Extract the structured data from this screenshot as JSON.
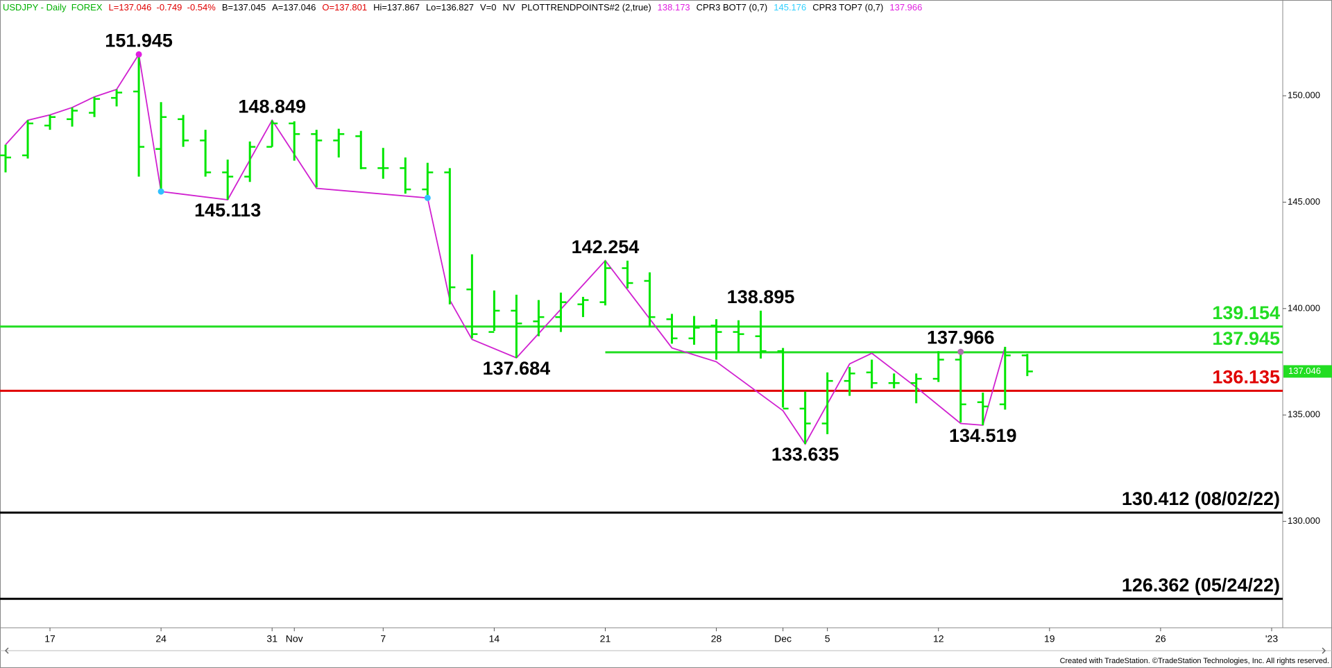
{
  "header": [
    {
      "text": "USDJPY - Daily  FOREX",
      "color": "#00b000"
    },
    {
      "text": "L=137.046  -0.749  -0.54%",
      "color": "#e00000"
    },
    {
      "text": "B=137.045",
      "color": "#000000"
    },
    {
      "text": "A=137.046",
      "color": "#000000"
    },
    {
      "text": "O=137.801",
      "color": "#e00000"
    },
    {
      "text": "Hi=137.867",
      "color": "#000000"
    },
    {
      "text": "Lo=136.827",
      "color": "#000000"
    },
    {
      "text": "V=0",
      "color": "#000000"
    },
    {
      "text": "NV",
      "color": "#000000"
    },
    {
      "text": "PLOTTRENDPOINTS#2 (2,true)",
      "color": "#000000"
    },
    {
      "text": "138.173",
      "color": "#e020e0"
    },
    {
      "text": "CPR3 BOT7 (0,7)",
      "color": "#000000"
    },
    {
      "text": "145.176",
      "color": "#30d0ff"
    },
    {
      "text": "CPR3 TOP7 (0,7)",
      "color": "#000000"
    },
    {
      "text": "137.966",
      "color": "#e020e0"
    }
  ],
  "footer": "Created with TradeStation. ©TradeStation Technologies, Inc. All rights reserved.",
  "chart_data": {
    "type": "ohlc",
    "color": "#00e600",
    "x": [
      0,
      1,
      2,
      3,
      4,
      5,
      6,
      7,
      8,
      9,
      10,
      11,
      12,
      13,
      14,
      15,
      16,
      17,
      18,
      19,
      20,
      21,
      22,
      23,
      24,
      25,
      26,
      27,
      28,
      29,
      30,
      31,
      32,
      33,
      34,
      35,
      36,
      37,
      38,
      39,
      40,
      41,
      42,
      43,
      44,
      45,
      46
    ],
    "open": [
      147.2,
      147.2,
      148.6,
      148.9,
      149.2,
      149.9,
      150.2,
      147.5,
      148.9,
      147.9,
      146.4,
      146.2,
      147.6,
      148.7,
      148.2,
      147.9,
      148.1,
      146.6,
      146.6,
      145.6,
      146.4,
      140.9,
      138.9,
      139.9,
      139.4,
      139.6,
      140.2,
      140.3,
      141.9,
      141.3,
      139.5,
      138.6,
      139.2,
      138.9,
      138.7,
      138.0,
      135.3,
      134.6,
      136.6,
      137.0,
      136.5,
      136.5,
      136.7,
      137.6,
      135.6,
      135.5,
      137.801
    ],
    "high": [
      147.7,
      148.85,
      149.1,
      149.45,
      149.95,
      150.3,
      151.945,
      149.7,
      149.1,
      148.4,
      147.0,
      147.85,
      148.849,
      148.8,
      148.4,
      148.45,
      148.35,
      147.55,
      147.1,
      146.85,
      146.6,
      142.55,
      140.85,
      140.65,
      140.4,
      140.75,
      140.55,
      142.254,
      142.25,
      141.7,
      139.75,
      139.65,
      139.5,
      139.45,
      139.9,
      138.15,
      136.1,
      137.0,
      137.25,
      137.6,
      136.95,
      136.95,
      138.0,
      138.0,
      136.05,
      138.2,
      137.867
    ],
    "low": [
      146.4,
      147.05,
      148.4,
      148.55,
      149.0,
      149.5,
      146.2,
      145.5,
      147.6,
      146.2,
      145.113,
      145.95,
      147.6,
      146.95,
      145.7,
      147.1,
      146.55,
      146.1,
      145.4,
      145.2,
      140.2,
      138.6,
      138.95,
      137.684,
      138.7,
      138.9,
      139.6,
      140.15,
      140.95,
      139.15,
      138.35,
      138.3,
      137.6,
      137.95,
      137.65,
      135.35,
      133.635,
      134.1,
      135.9,
      136.25,
      136.25,
      135.55,
      136.55,
      134.65,
      134.519,
      135.25,
      136.827
    ],
    "close": [
      147.1,
      148.7,
      149.0,
      149.3,
      149.85,
      150.15,
      147.6,
      149.0,
      147.9,
      146.4,
      146.2,
      147.6,
      148.7,
      148.2,
      147.9,
      148.2,
      146.6,
      146.6,
      145.6,
      146.4,
      141.0,
      138.8,
      139.9,
      139.3,
      139.6,
      140.3,
      140.4,
      141.9,
      141.2,
      139.6,
      138.6,
      139.1,
      138.9,
      138.8,
      138.0,
      135.3,
      134.6,
      136.6,
      136.95,
      136.5,
      136.5,
      136.7,
      137.6,
      135.5,
      135.4,
      137.8,
      137.046
    ],
    "trend": {
      "color": "#d020d0",
      "x": [
        0,
        1,
        2,
        3,
        4,
        5,
        6,
        7,
        10,
        12,
        14,
        19,
        20,
        21,
        23,
        27,
        30,
        32,
        35,
        36,
        38,
        39,
        41,
        43,
        44,
        45
      ],
      "values": [
        147.7,
        148.85,
        149.1,
        149.45,
        149.95,
        150.3,
        151.945,
        145.5,
        145.113,
        148.849,
        145.65,
        145.2,
        140.4,
        138.55,
        137.684,
        142.254,
        138.15,
        137.5,
        135.2,
        133.635,
        137.4,
        137.9,
        136.3,
        134.6,
        134.519,
        138.2
      ]
    },
    "pivot_markers": [
      {
        "x": 6,
        "value": 151.945,
        "color": "#e020e0"
      },
      {
        "x": 7,
        "value": 145.5,
        "color": "#30c0ff"
      },
      {
        "x": 19,
        "value": 145.2,
        "color": "#30c0ff"
      },
      {
        "x": 43,
        "value": 137.966,
        "color": "#b070b0"
      }
    ],
    "pivot_labels": [
      {
        "x": 6,
        "value": 151.945
      },
      {
        "x": 10,
        "value": 145.113
      },
      {
        "x": 12,
        "value": 148.849
      },
      {
        "x": 23,
        "value": 137.684
      },
      {
        "x": 27,
        "value": 142.254
      },
      {
        "x": 34,
        "value": 138.895
      },
      {
        "x": 36,
        "value": 133.635
      },
      {
        "x": 43,
        "value": 137.966
      },
      {
        "x": 44,
        "value": 134.519
      }
    ],
    "levels": [
      {
        "value": 139.154,
        "color": "#22dd22"
      },
      {
        "value": 137.945,
        "color": "#22dd22",
        "from": 27
      },
      {
        "value": 136.135,
        "color": "#e00000"
      },
      {
        "value": 130.412,
        "color": "#000000",
        "label": "130.412 (08/02/22)"
      },
      {
        "value": 126.362,
        "color": "#000000",
        "label": "126.362 (05/24/22)"
      }
    ],
    "last_price_color": "#22dd22",
    "xlim": [
      -0.25,
      57.5
    ],
    "xticks": [
      {
        "value": 2,
        "label": "17"
      },
      {
        "value": 7,
        "label": "24"
      },
      {
        "value": 12,
        "label": "31"
      },
      {
        "value": 13,
        "label": "Nov"
      },
      {
        "value": 17,
        "label": "7"
      },
      {
        "value": 22,
        "label": "14"
      },
      {
        "value": 27,
        "label": "21"
      },
      {
        "value": 32,
        "label": "28"
      },
      {
        "value": 35,
        "label": "Dec"
      },
      {
        "value": 37,
        "label": "5"
      },
      {
        "value": 42,
        "label": "12"
      },
      {
        "value": 47,
        "label": "19"
      },
      {
        "value": 52,
        "label": "26"
      },
      {
        "value": 57,
        "label": "'23"
      }
    ],
    "ylim": [
      125,
      154.5
    ],
    "yticks": [
      {
        "value": 130,
        "label": "130.000"
      },
      {
        "value": 135,
        "label": "135.000"
      },
      {
        "value": 140,
        "label": "140.000"
      },
      {
        "value": 145,
        "label": "145.000"
      },
      {
        "value": 150,
        "label": "150.000"
      }
    ]
  }
}
